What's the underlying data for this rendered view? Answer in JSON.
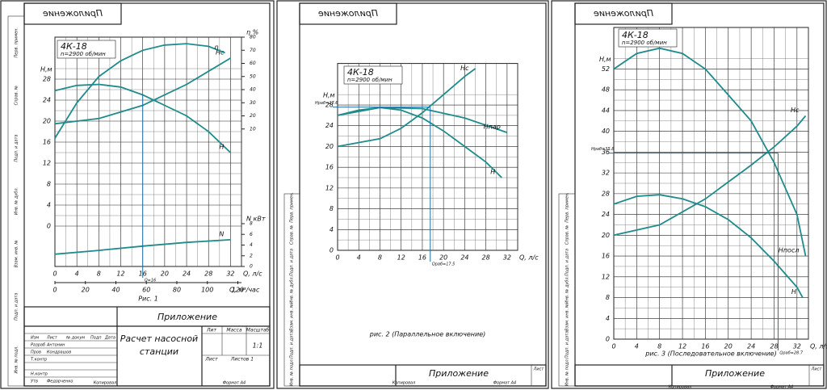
{
  "side_labels": [
    "Перв. примен.",
    "Справ. №",
    "Подп. и дата",
    "Инв. № дубл.",
    "Взам. инв. №",
    "Подп. и дата",
    "Инв. № подл."
  ],
  "sheets": [
    {
      "stamp": "Приложение",
      "chart": {
        "title": "4К-18",
        "subtitle": "n=2900 об/мин",
        "y_label": "H,м",
        "x_label": "Q, л/с",
        "xlim": [
          0,
          34
        ],
        "xticks": [
          0,
          4,
          8,
          12,
          16,
          20,
          24,
          28,
          32
        ],
        "ylim": [
          0,
          36
        ],
        "yticks": [
          0,
          4,
          8,
          12,
          16,
          20,
          24,
          28
        ],
        "x2_label": "Q, м³/час",
        "x2lim": [
          0,
          122.4
        ],
        "x2ticks": [
          0,
          20,
          40,
          60,
          80,
          100,
          120
        ],
        "y2_label": "η %",
        "y2lim": [
          0,
          80
        ],
        "y2ticks": [
          10,
          20,
          30,
          40,
          50,
          60,
          70,
          80
        ],
        "y3_label": "N кВт",
        "y3lim": [
          0,
          8
        ],
        "y3ticks": [
          0,
          2,
          4,
          6,
          8
        ],
        "curves": [
          {
            "name": "H",
            "axis": "y",
            "x": [
              0,
              4,
              8,
              12,
              16,
              20,
              24,
              28,
              32
            ],
            "y": [
              25.8,
              26.8,
              27,
              26.5,
              25,
              23,
              21,
              18,
              14
            ]
          },
          {
            "name": "Hс",
            "axis": "y",
            "x": [
              0,
              8,
              16,
              24,
              32
            ],
            "y": [
              19.5,
              20.5,
              23,
              27,
              32
            ]
          },
          {
            "name": "η",
            "axis": "y2",
            "x": [
              0,
              4,
              8,
              12,
              16,
              20,
              24,
              28,
              31
            ],
            "y": [
              3,
              30,
              50,
              62,
              70,
              74,
              75,
              73,
              68
            ]
          },
          {
            "name": "N",
            "axis": "y3",
            "x": [
              0,
              8,
              16,
              24,
              32
            ],
            "y": [
              2.3,
              3,
              3.8,
              4.5,
              5
            ]
          }
        ],
        "operating_point": {
          "x": 16,
          "y": 25,
          "x_label": "Q=16"
        },
        "caption": "Рис. 1"
      },
      "title_block": {
        "appendix": "Приложение",
        "name1": "Расчет насосной",
        "name2": "станции",
        "lit": "Лит",
        "mass": "Масса",
        "scale_h": "Масштаб",
        "scale": "1:1",
        "sheet": "Лист",
        "sheets": "Листов 1",
        "rows": [
          [
            "Изм",
            "Лист",
            "№ докум",
            "Подп",
            "Дата"
          ],
          [
            "Разраб",
            "Антонин"
          ],
          [
            "Пров",
            "Кондрашов"
          ],
          [
            "Т.контр",
            ""
          ],
          [
            "Н.контр",
            ""
          ],
          [
            "Утв",
            "Федорченко"
          ]
        ],
        "copied": "Копировал",
        "format": "Формат А4"
      }
    },
    {
      "stamp": "Приложение",
      "chart": {
        "title": "4К-18",
        "subtitle": "n=2900 об/мин",
        "y_label": "H,м",
        "x_label": "Q, л/с",
        "xlim": [
          0,
          34
        ],
        "xticks": [
          0,
          4,
          8,
          12,
          16,
          20,
          24,
          28,
          32
        ],
        "ylim": [
          0,
          36
        ],
        "yticks": [
          0,
          4,
          8,
          12,
          16,
          20,
          24,
          28
        ],
        "curves": [
          {
            "name": "H",
            "axis": "y",
            "x": [
              0,
              4,
              8,
              12,
              16,
              20,
              24,
              28,
              31
            ],
            "y": [
              26,
              27,
              27.5,
              27,
              25.5,
              23,
              20,
              17,
              14
            ]
          },
          {
            "name": "Hпар",
            "axis": "y",
            "x": [
              0,
              8,
              16,
              24,
              32
            ],
            "y": [
              26,
              27.5,
              27.3,
              25.5,
              22.7
            ]
          },
          {
            "name": "Hс",
            "axis": "y",
            "x": [
              0,
              8,
              12,
              16,
              20,
              24,
              26
            ],
            "y": [
              20,
              21.5,
              23.5,
              26.5,
              30,
              33.5,
              35
            ]
          }
        ],
        "operating_point": {
          "x": 17.5,
          "y": 27.6,
          "x_label": "Qраб=17.5",
          "y_label": "Hраб=27.6"
        },
        "caption": "рис. 2 (Параллельное включение)"
      },
      "title_block": {
        "appendix": "Приложение",
        "copied": "Копировал",
        "format": "Формат А4",
        "sheet": "Лист"
      }
    },
    {
      "stamp": "Приложение",
      "chart": {
        "title": "4К-18",
        "subtitle": "n=2900 об/мин",
        "y_label": "H,м",
        "x_label": "Q, л/с",
        "xlim": [
          0,
          34
        ],
        "xticks": [
          0,
          4,
          8,
          12,
          16,
          20,
          24,
          28,
          32
        ],
        "ylim": [
          0,
          60
        ],
        "yticks": [
          0,
          4,
          8,
          12,
          16,
          20,
          24,
          28,
          32,
          36,
          40,
          44,
          48,
          52
        ],
        "curves": [
          {
            "name": "Hпосл",
            "axis": "y",
            "x": [
              0,
              4,
              8,
              12,
              16,
              20,
              24,
              28,
              32,
              33.5
            ],
            "y": [
              52,
              55,
              56,
              55,
              52,
              47,
              42,
              34,
              24,
              16
            ]
          },
          {
            "name": "H",
            "axis": "y",
            "x": [
              0,
              4,
              8,
              12,
              16,
              20,
              24,
              28,
              32,
              33
            ],
            "y": [
              26,
              27.5,
              27.8,
              27,
              25.5,
              23,
              19.5,
              15,
              10,
              8
            ]
          },
          {
            "name": "Hс",
            "axis": "y",
            "x": [
              0,
              8,
              16,
              24,
              28,
              32,
              33.5
            ],
            "y": [
              20,
              22,
              27,
              33.5,
              37,
              41,
              43
            ]
          }
        ],
        "operating_point": {
          "x": 28.7,
          "y": 35.8,
          "x_label": "Qраб=28.7",
          "y_label": "Hраб=35.8"
        },
        "caption": "рис. 3 (Последовательное включение)"
      },
      "title_block": {
        "appendix": "Приложение",
        "copied": "Копировал",
        "format": "Формат А4",
        "sheet": "Лист"
      }
    }
  ]
}
